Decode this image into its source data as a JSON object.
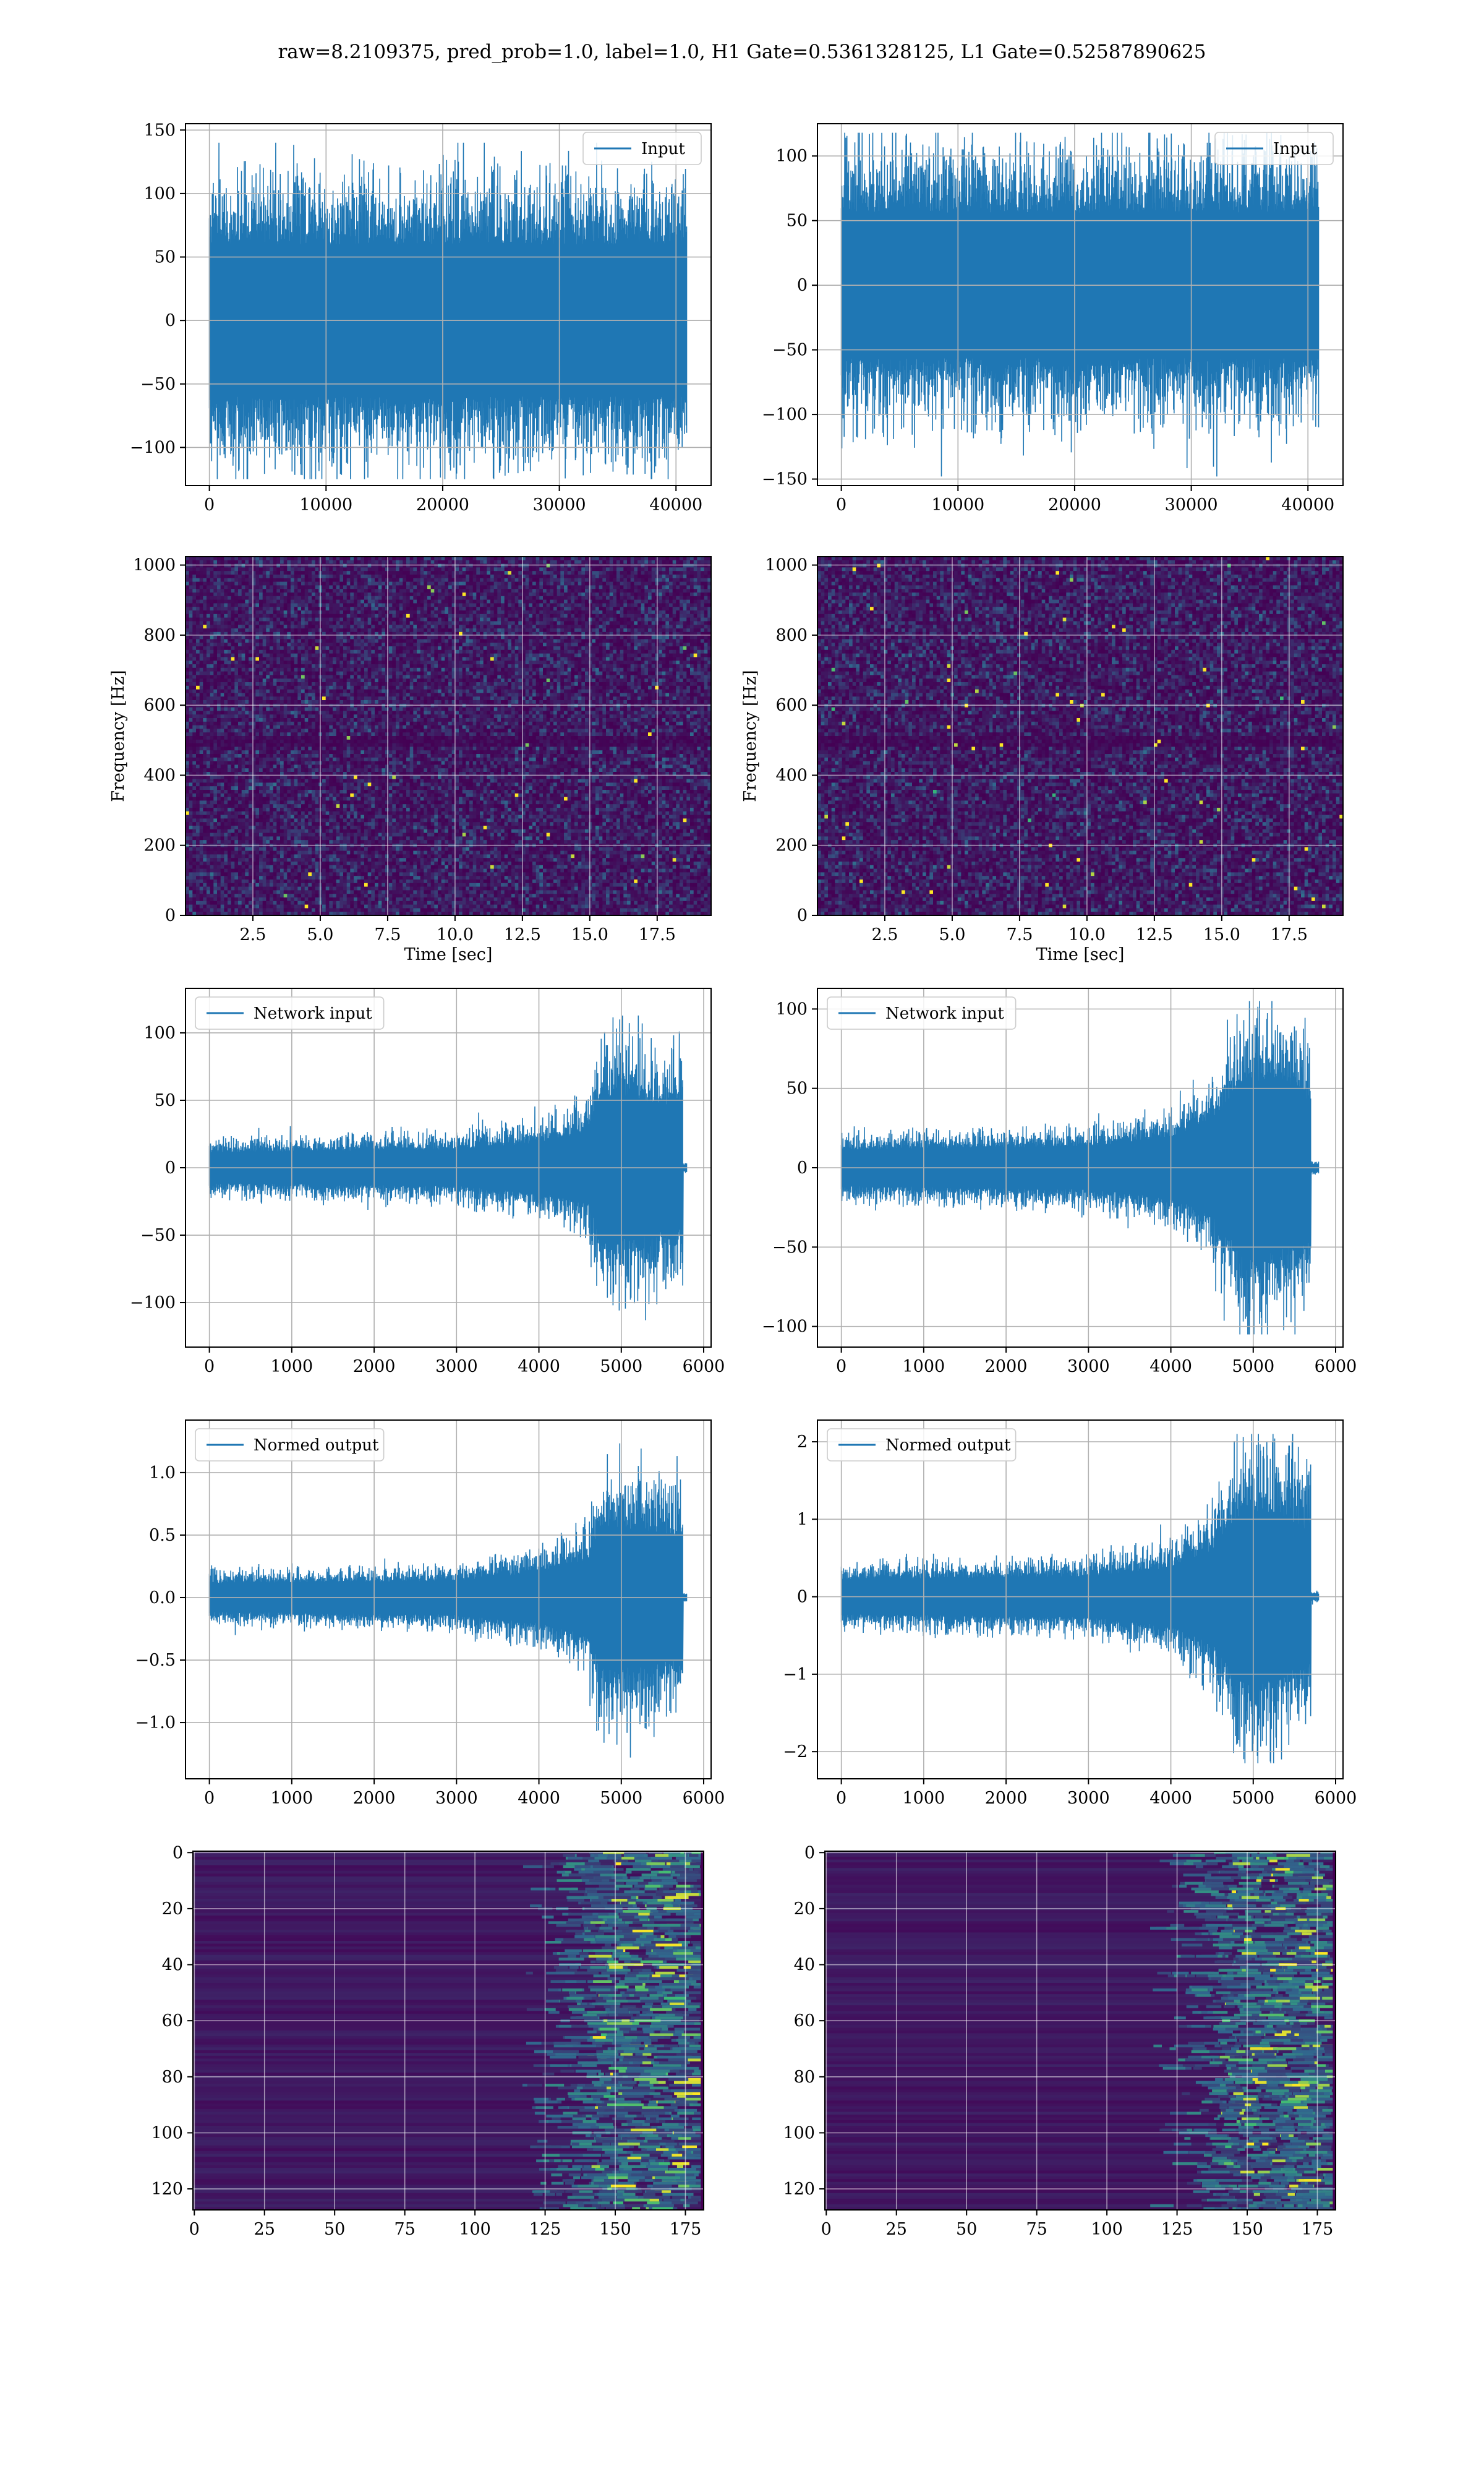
{
  "title": "raw=8.2109375, pred_prob=1.0, label=1.0, H1 Gate=0.5361328125, L1 Gate=0.52587890625",
  "colors": {
    "line": "#1f77b4",
    "grid": "#b0b0b0",
    "heat_low": "#440154",
    "heat_mid": "#31688e",
    "heat_high": "#35b779",
    "heat_peak": "#fde725"
  },
  "chart_data": [
    {
      "id": "input-h1",
      "type": "line",
      "legend": "Input",
      "legend_loc": "upper right",
      "xlim": [
        -2048,
        43008
      ],
      "ylim": [
        -130,
        155
      ],
      "xticks": [
        0,
        10000,
        20000,
        30000,
        40000
      ],
      "xticklabels": [
        "0",
        "10000",
        "20000",
        "30000",
        "40000"
      ],
      "yticks": [
        -100,
        -50,
        0,
        50,
        100,
        150
      ],
      "yticklabels": [
        "−100",
        "−50",
        "0",
        "50",
        "100",
        "150"
      ],
      "xlabel": "",
      "ylabel": "",
      "signal": {
        "n": 40960,
        "envelope": [
          [
            0,
            80
          ],
          [
            40960,
            80
          ]
        ],
        "max": 140,
        "min": -125
      }
    },
    {
      "id": "input-l1",
      "type": "line",
      "legend": "Input",
      "legend_loc": "upper right",
      "xlim": [
        -2048,
        43008
      ],
      "ylim": [
        -155,
        125
      ],
      "xticks": [
        0,
        10000,
        20000,
        30000,
        40000
      ],
      "xticklabels": [
        "0",
        "10000",
        "20000",
        "30000",
        "40000"
      ],
      "yticks": [
        -150,
        -100,
        -50,
        0,
        50,
        100
      ],
      "yticklabels": [
        "−150",
        "−100",
        "−50",
        "0",
        "50",
        "100"
      ],
      "xlabel": "",
      "ylabel": "",
      "signal": {
        "n": 40960,
        "envelope": [
          [
            0,
            75
          ],
          [
            40960,
            75
          ]
        ],
        "max": 118,
        "min": -148
      }
    },
    {
      "id": "spectrogram-h1",
      "type": "heatmap",
      "xlim": [
        0,
        19.5
      ],
      "ylim": [
        0,
        1024
      ],
      "xticks": [
        2.5,
        5.0,
        7.5,
        10.0,
        12.5,
        15.0,
        17.5
      ],
      "xticklabels": [
        "2.5",
        "5.0",
        "7.5",
        "10.0",
        "12.5",
        "15.0",
        "17.5"
      ],
      "yticks": [
        0,
        200,
        400,
        600,
        800,
        1000
      ],
      "yticklabels": [
        "0",
        "200",
        "400",
        "600",
        "800",
        "1000"
      ],
      "xlabel": "Time [sec]",
      "ylabel": "Frequency [Hz]"
    },
    {
      "id": "spectrogram-l1",
      "type": "heatmap",
      "xlim": [
        0,
        19.5
      ],
      "ylim": [
        0,
        1024
      ],
      "xticks": [
        2.5,
        5.0,
        7.5,
        10.0,
        12.5,
        15.0,
        17.5
      ],
      "xticklabels": [
        "2.5",
        "5.0",
        "7.5",
        "10.0",
        "12.5",
        "15.0",
        "17.5"
      ],
      "yticks": [
        0,
        200,
        400,
        600,
        800,
        1000
      ],
      "yticklabels": [
        "0",
        "200",
        "400",
        "600",
        "800",
        "1000"
      ],
      "xlabel": "Time [sec]",
      "ylabel": "Frequency [Hz]"
    },
    {
      "id": "network-input-h1",
      "type": "line",
      "legend": "Network input",
      "legend_loc": "upper left",
      "xlim": [
        -290,
        6090
      ],
      "ylim": [
        -133,
        133
      ],
      "xticks": [
        0,
        1000,
        2000,
        3000,
        4000,
        5000,
        6000
      ],
      "xticklabels": [
        "0",
        "1000",
        "2000",
        "3000",
        "4000",
        "5000",
        "6000"
      ],
      "yticks": [
        -100,
        -50,
        0,
        50,
        100
      ],
      "yticklabels": [
        "−100",
        "−50",
        "0",
        "50",
        "100"
      ],
      "xlabel": "",
      "ylabel": "",
      "signal": {
        "n": 5800,
        "envelope": [
          [
            0,
            15
          ],
          [
            3000,
            18
          ],
          [
            4000,
            25
          ],
          [
            4600,
            35
          ],
          [
            4750,
            70
          ],
          [
            5000,
            70
          ],
          [
            5750,
            60
          ],
          [
            5751,
            3
          ],
          [
            5800,
            3
          ]
        ],
        "max": 125,
        "min": -118
      }
    },
    {
      "id": "network-input-l1",
      "type": "line",
      "legend": "Network input",
      "legend_loc": "upper left",
      "xlim": [
        -290,
        6090
      ],
      "ylim": [
        -113,
        113
      ],
      "xticks": [
        0,
        1000,
        2000,
        3000,
        4000,
        5000,
        6000
      ],
      "xticklabels": [
        "0",
        "1000",
        "2000",
        "3000",
        "4000",
        "5000",
        "6000"
      ],
      "yticks": [
        -100,
        -50,
        0,
        50,
        100
      ],
      "yticklabels": [
        "−100",
        "−50",
        "0",
        "50",
        "100"
      ],
      "xlabel": "",
      "ylabel": "",
      "signal": {
        "n": 5800,
        "envelope": [
          [
            0,
            15
          ],
          [
            3000,
            18
          ],
          [
            4000,
            25
          ],
          [
            4500,
            40
          ],
          [
            4900,
            75
          ],
          [
            5300,
            70
          ],
          [
            5700,
            55
          ],
          [
            5701,
            3
          ],
          [
            5800,
            3
          ]
        ],
        "max": 105,
        "min": -105
      }
    },
    {
      "id": "normed-output-h1",
      "type": "line",
      "legend": "Normed output",
      "legend_loc": "upper left",
      "xlim": [
        -290,
        6090
      ],
      "ylim": [
        -1.45,
        1.42
      ],
      "xticks": [
        0,
        1000,
        2000,
        3000,
        4000,
        5000,
        6000
      ],
      "xticklabels": [
        "0",
        "1000",
        "2000",
        "3000",
        "4000",
        "5000",
        "6000"
      ],
      "yticks": [
        -1.0,
        -0.5,
        0.0,
        0.5,
        1.0
      ],
      "yticklabels": [
        "−1.0",
        "−0.5",
        "0.0",
        "0.5",
        "1.0"
      ],
      "xlabel": "",
      "ylabel": "",
      "signal": {
        "n": 5800,
        "envelope": [
          [
            0,
            0.15
          ],
          [
            3000,
            0.18
          ],
          [
            4000,
            0.27
          ],
          [
            4600,
            0.4
          ],
          [
            4750,
            0.75
          ],
          [
            5000,
            0.75
          ],
          [
            5750,
            0.65
          ],
          [
            5751,
            0.03
          ],
          [
            5800,
            0.03
          ]
        ],
        "max": 1.36,
        "min": -1.28
      }
    },
    {
      "id": "normed-output-l1",
      "type": "line",
      "legend": "Normed output",
      "legend_loc": "upper left",
      "xlim": [
        -290,
        6090
      ],
      "ylim": [
        -2.35,
        2.28
      ],
      "xticks": [
        0,
        1000,
        2000,
        3000,
        4000,
        5000,
        6000
      ],
      "xticklabels": [
        "0",
        "1000",
        "2000",
        "3000",
        "4000",
        "5000",
        "6000"
      ],
      "yticks": [
        -2,
        -1,
        0,
        1,
        2
      ],
      "yticklabels": [
        "−2",
        "−1",
        "0",
        "1",
        "2"
      ],
      "xlabel": "",
      "ylabel": "",
      "signal": {
        "n": 5800,
        "envelope": [
          [
            0,
            0.3
          ],
          [
            3000,
            0.35
          ],
          [
            4000,
            0.5
          ],
          [
            4500,
            0.8
          ],
          [
            4900,
            1.5
          ],
          [
            5300,
            1.4
          ],
          [
            5700,
            1.1
          ],
          [
            5701,
            0.05
          ],
          [
            5800,
            0.05
          ]
        ],
        "max": 2.1,
        "min": -2.15
      }
    },
    {
      "id": "feature-map-h1",
      "type": "heatmap",
      "xlim": [
        -0.5,
        181.5
      ],
      "ylim": [
        127.5,
        -0.5
      ],
      "xticks": [
        0,
        25,
        50,
        75,
        100,
        125,
        150,
        175
      ],
      "xticklabels": [
        "0",
        "25",
        "50",
        "75",
        "100",
        "125",
        "150",
        "175"
      ],
      "yticks": [
        0,
        20,
        40,
        60,
        80,
        100,
        120
      ],
      "yticklabels": [
        "0",
        "20",
        "40",
        "60",
        "80",
        "100",
        "120"
      ],
      "xlabel": "",
      "ylabel": ""
    },
    {
      "id": "feature-map-l1",
      "type": "heatmap",
      "xlim": [
        -0.5,
        181.5
      ],
      "ylim": [
        127.5,
        -0.5
      ],
      "xticks": [
        0,
        25,
        50,
        75,
        100,
        125,
        150,
        175
      ],
      "xticklabels": [
        "0",
        "25",
        "50",
        "75",
        "100",
        "125",
        "150",
        "175"
      ],
      "yticks": [
        0,
        20,
        40,
        60,
        80,
        100,
        120
      ],
      "yticklabels": [
        "0",
        "20",
        "40",
        "60",
        "80",
        "100",
        "120"
      ],
      "xlabel": "",
      "ylabel": ""
    }
  ]
}
